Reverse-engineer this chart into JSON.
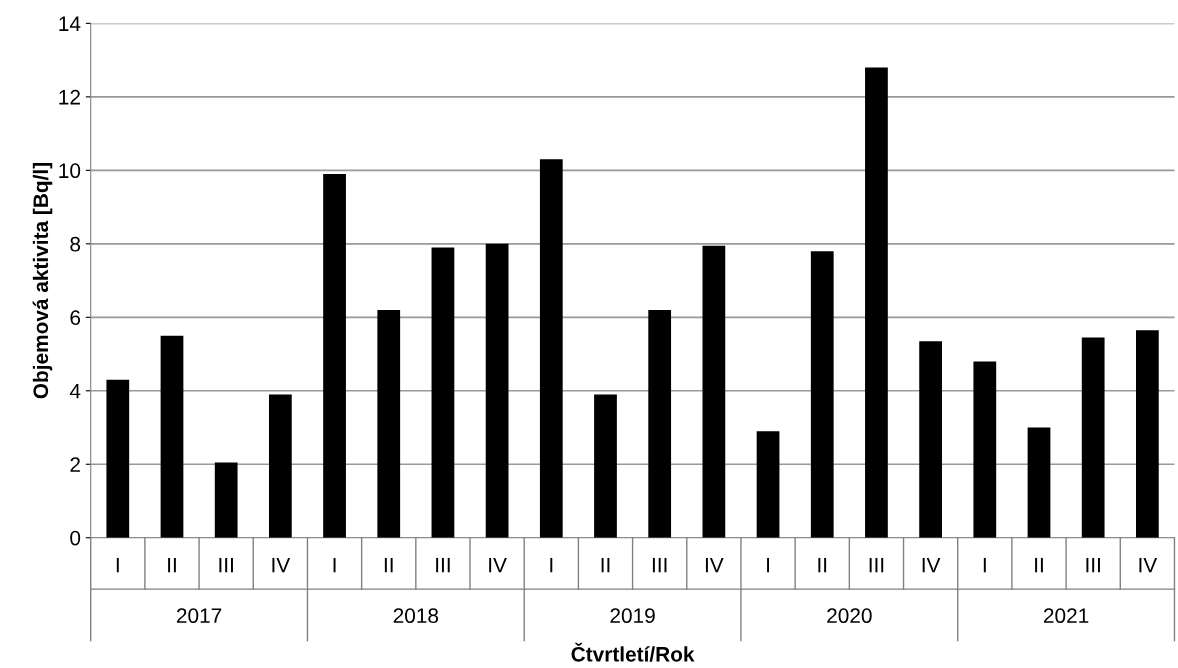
{
  "chart_data": {
    "type": "bar",
    "xlabel": "Čtvrtletí/Rok",
    "ylabel": "Objemová aktivita [Bq/l]",
    "categories": [
      "I",
      "II",
      "III",
      "IV",
      "I",
      "II",
      "III",
      "IV",
      "I",
      "II",
      "III",
      "IV",
      "I",
      "II",
      "III",
      "IV",
      "I",
      "II",
      "III",
      "IV"
    ],
    "values": [
      4.3,
      5.5,
      2.05,
      3.9,
      9.9,
      6.2,
      7.9,
      8.0,
      10.3,
      3.9,
      6.2,
      7.95,
      2.9,
      7.8,
      12.8,
      5.35,
      4.8,
      3.0,
      5.45,
      5.65
    ],
    "color": "#000000",
    "annotations": [
      "2017",
      "2018",
      "2019",
      "2020",
      "2021"
    ],
    "ylim": [
      0,
      14
    ],
    "yticks": [
      0,
      2,
      4,
      6,
      8,
      10,
      12,
      14
    ],
    "grid": "y"
  }
}
